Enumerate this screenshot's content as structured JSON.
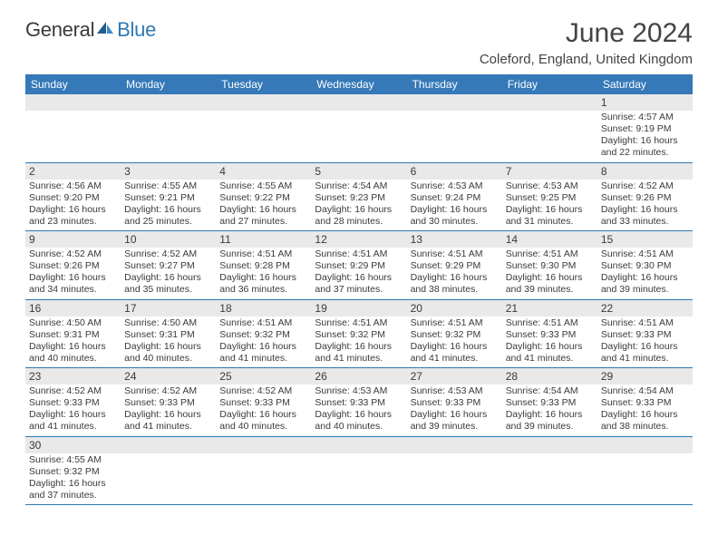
{
  "brand": {
    "part1": "General",
    "part2": "Blue"
  },
  "title": "June 2024",
  "location": "Coleford, England, United Kingdom",
  "colors": {
    "header_bg": "#3579b8",
    "header_text": "#ffffff",
    "daynum_bg": "#e9e9e9",
    "rule": "#2d79b5",
    "text": "#3a3a3a"
  },
  "day_headers": [
    "Sunday",
    "Monday",
    "Tuesday",
    "Wednesday",
    "Thursday",
    "Friday",
    "Saturday"
  ],
  "weeks": [
    {
      "nums": [
        "",
        "",
        "",
        "",
        "",
        "",
        "1"
      ],
      "details": [
        "",
        "",
        "",
        "",
        "",
        "",
        "Sunrise: 4:57 AM\nSunset: 9:19 PM\nDaylight: 16 hours and 22 minutes."
      ]
    },
    {
      "nums": [
        "2",
        "3",
        "4",
        "5",
        "6",
        "7",
        "8"
      ],
      "details": [
        "Sunrise: 4:56 AM\nSunset: 9:20 PM\nDaylight: 16 hours and 23 minutes.",
        "Sunrise: 4:55 AM\nSunset: 9:21 PM\nDaylight: 16 hours and 25 minutes.",
        "Sunrise: 4:55 AM\nSunset: 9:22 PM\nDaylight: 16 hours and 27 minutes.",
        "Sunrise: 4:54 AM\nSunset: 9:23 PM\nDaylight: 16 hours and 28 minutes.",
        "Sunrise: 4:53 AM\nSunset: 9:24 PM\nDaylight: 16 hours and 30 minutes.",
        "Sunrise: 4:53 AM\nSunset: 9:25 PM\nDaylight: 16 hours and 31 minutes.",
        "Sunrise: 4:52 AM\nSunset: 9:26 PM\nDaylight: 16 hours and 33 minutes."
      ]
    },
    {
      "nums": [
        "9",
        "10",
        "11",
        "12",
        "13",
        "14",
        "15"
      ],
      "details": [
        "Sunrise: 4:52 AM\nSunset: 9:26 PM\nDaylight: 16 hours and 34 minutes.",
        "Sunrise: 4:52 AM\nSunset: 9:27 PM\nDaylight: 16 hours and 35 minutes.",
        "Sunrise: 4:51 AM\nSunset: 9:28 PM\nDaylight: 16 hours and 36 minutes.",
        "Sunrise: 4:51 AM\nSunset: 9:29 PM\nDaylight: 16 hours and 37 minutes.",
        "Sunrise: 4:51 AM\nSunset: 9:29 PM\nDaylight: 16 hours and 38 minutes.",
        "Sunrise: 4:51 AM\nSunset: 9:30 PM\nDaylight: 16 hours and 39 minutes.",
        "Sunrise: 4:51 AM\nSunset: 9:30 PM\nDaylight: 16 hours and 39 minutes."
      ]
    },
    {
      "nums": [
        "16",
        "17",
        "18",
        "19",
        "20",
        "21",
        "22"
      ],
      "details": [
        "Sunrise: 4:50 AM\nSunset: 9:31 PM\nDaylight: 16 hours and 40 minutes.",
        "Sunrise: 4:50 AM\nSunset: 9:31 PM\nDaylight: 16 hours and 40 minutes.",
        "Sunrise: 4:51 AM\nSunset: 9:32 PM\nDaylight: 16 hours and 41 minutes.",
        "Sunrise: 4:51 AM\nSunset: 9:32 PM\nDaylight: 16 hours and 41 minutes.",
        "Sunrise: 4:51 AM\nSunset: 9:32 PM\nDaylight: 16 hours and 41 minutes.",
        "Sunrise: 4:51 AM\nSunset: 9:33 PM\nDaylight: 16 hours and 41 minutes.",
        "Sunrise: 4:51 AM\nSunset: 9:33 PM\nDaylight: 16 hours and 41 minutes."
      ]
    },
    {
      "nums": [
        "23",
        "24",
        "25",
        "26",
        "27",
        "28",
        "29"
      ],
      "details": [
        "Sunrise: 4:52 AM\nSunset: 9:33 PM\nDaylight: 16 hours and 41 minutes.",
        "Sunrise: 4:52 AM\nSunset: 9:33 PM\nDaylight: 16 hours and 41 minutes.",
        "Sunrise: 4:52 AM\nSunset: 9:33 PM\nDaylight: 16 hours and 40 minutes.",
        "Sunrise: 4:53 AM\nSunset: 9:33 PM\nDaylight: 16 hours and 40 minutes.",
        "Sunrise: 4:53 AM\nSunset: 9:33 PM\nDaylight: 16 hours and 39 minutes.",
        "Sunrise: 4:54 AM\nSunset: 9:33 PM\nDaylight: 16 hours and 39 minutes.",
        "Sunrise: 4:54 AM\nSunset: 9:33 PM\nDaylight: 16 hours and 38 minutes."
      ]
    },
    {
      "nums": [
        "30",
        "",
        "",
        "",
        "",
        "",
        ""
      ],
      "details": [
        "Sunrise: 4:55 AM\nSunset: 9:32 PM\nDaylight: 16 hours and 37 minutes.",
        "",
        "",
        "",
        "",
        "",
        ""
      ]
    }
  ]
}
